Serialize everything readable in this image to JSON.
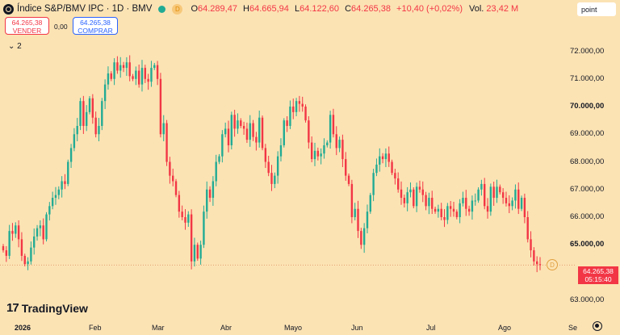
{
  "header": {
    "title": "Índice S&P/BMV IPC · 1D · BMV",
    "badge_d": "D",
    "ohlc": [
      {
        "k": "O",
        "v": "64.289,47"
      },
      {
        "k": "H",
        "v": "64.665,94"
      },
      {
        "k": "L",
        "v": "64.122,60"
      },
      {
        "k": "C",
        "v": "64.265,38"
      }
    ],
    "change": "+10,40 (+0,02%)",
    "vol_label": "Vol.",
    "vol_value": "23,42 M"
  },
  "trade": {
    "sell_price": "64.265,38",
    "sell_label": "VENDER",
    "spread": "0,00",
    "buy_price": "64.265,38",
    "buy_label": "COMPRAR"
  },
  "collapse_label": "⌄ 2",
  "point_label": "point",
  "price_tag": {
    "price": "64.265,38",
    "countdown": "05:15:40"
  },
  "d_marker": "D",
  "logo_text": "TradingView",
  "colors": {
    "up": "#22ab94",
    "down": "#f23645",
    "background": "#fce3b4"
  },
  "chart_data": {
    "type": "candlestick",
    "y_ticks": [
      "72.000,00",
      "71.000,00",
      "70.000,00",
      "69.000,00",
      "68.000,00",
      "67.000,00",
      "66.000,00",
      "65.000,00",
      "63.000,00"
    ],
    "y_bold": [
      "70.000,00",
      "65.000,00"
    ],
    "x_ticks": [
      "2026",
      "Feb",
      "Mar",
      "Abr",
      "Mayo",
      "Jun",
      "Jul",
      "Ago",
      "Se"
    ],
    "x_bold": [
      "2026"
    ],
    "ylim": [
      62700,
      72600
    ],
    "last_price": 64265.38,
    "closes": [
      64800,
      64600,
      65500,
      65400,
      65700,
      65200,
      64600,
      64300,
      64400,
      64900,
      65300,
      65600,
      65700,
      65200,
      66100,
      66400,
      66700,
      66800,
      67000,
      67300,
      67200,
      68000,
      68500,
      69000,
      69300,
      70200,
      69300,
      69800,
      70300,
      69600,
      69000,
      69300,
      70200,
      70800,
      71200,
      71000,
      71600,
      71300,
      71500,
      71400,
      71600,
      71100,
      71000,
      71300,
      70800,
      71400,
      71000,
      70900,
      71400,
      71500,
      71000,
      69000,
      69400,
      68000,
      67500,
      67300,
      66800,
      66200,
      66000,
      65800,
      66100,
      64400,
      65000,
      64500,
      65000,
      66200,
      67000,
      66700,
      67300,
      68000,
      68200,
      69000,
      69200,
      68600,
      69700,
      69200,
      69500,
      69300,
      69200,
      68800,
      69400,
      68900,
      68700,
      69600,
      68500,
      68000,
      67600,
      67200,
      67500,
      68200,
      68600,
      69500,
      69300,
      70000,
      69800,
      70200,
      70100,
      70000,
      69500,
      68700,
      68100,
      68400,
      68200,
      68300,
      68600,
      68700,
      69700,
      69000,
      68500,
      68800,
      68100,
      67500,
      67200,
      66000,
      66300,
      65500,
      65000,
      65600,
      66200,
      66800,
      67600,
      67900,
      68200,
      68100,
      68300,
      68000,
      67600,
      67400,
      67000,
      66700,
      66500,
      66900,
      67000,
      66400,
      67100,
      67000,
      66800,
      66400,
      66700,
      66300,
      66200,
      66300,
      66000,
      65900,
      66400,
      66300,
      66200,
      66000,
      66500,
      66700,
      66300,
      66200,
      66600,
      66600,
      67000,
      67200,
      66400,
      66200,
      67100,
      66700,
      67100,
      66900,
      66700,
      66500,
      66400,
      66600,
      67000,
      66300,
      66700,
      66000,
      65200,
      64800,
      64400,
      64300,
      64265
    ]
  }
}
